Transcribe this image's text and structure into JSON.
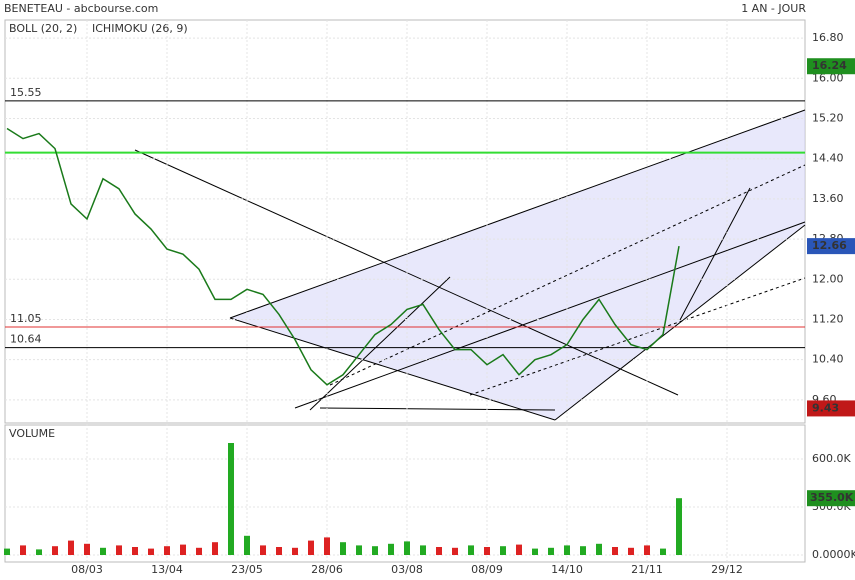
{
  "chart_data": [
    {
      "type": "line",
      "title": "BENETEAU - abcbourse.com",
      "period": "1 AN - JOUR",
      "indicators": [
        {
          "name": "BOLL (20, 2)",
          "color": "#e8a04a"
        },
        {
          "name": "ICHIMOKU (26, 9)",
          "color": "#2a56b8"
        }
      ],
      "categories": [
        null,
        null,
        null,
        null,
        null,
        "08/03",
        null,
        null,
        null,
        null,
        "13/04",
        null,
        null,
        null,
        null,
        "23/05",
        null,
        null,
        null,
        null,
        "28/06",
        null,
        null,
        null,
        null,
        "03/08",
        null,
        null,
        null,
        null,
        "08/09",
        null,
        null,
        null,
        null,
        "14/10",
        null,
        null,
        null,
        null,
        "21/11",
        null,
        null,
        null,
        null,
        "29/12",
        null,
        null,
        null,
        null
      ],
      "series": [
        {
          "name": "BENETEAU",
          "color": "#1a7a1a",
          "values": [
            15.0,
            14.8,
            14.9,
            14.6,
            13.5,
            13.2,
            14.0,
            13.8,
            13.3,
            13.0,
            12.6,
            12.5,
            12.2,
            11.6,
            11.6,
            11.8,
            11.7,
            11.3,
            10.8,
            10.2,
            9.9,
            10.1,
            10.5,
            10.9,
            11.1,
            11.4,
            11.5,
            11.0,
            10.6,
            10.6,
            10.3,
            10.5,
            10.1,
            10.4,
            10.5,
            10.7,
            11.2,
            11.6,
            11.1,
            10.7,
            10.6,
            10.9,
            12.66,
            null,
            null,
            null,
            null,
            null,
            null,
            null
          ]
        }
      ],
      "ylim": [
        9.14,
        17.16
      ],
      "yticks": [
        {
          "value": 9.6,
          "label": "9.60"
        },
        {
          "value": 10.4,
          "label": "10.40"
        },
        {
          "value": 11.2,
          "label": "11.20"
        },
        {
          "value": 12.0,
          "label": "12.00"
        },
        {
          "value": 12.8,
          "label": "12.80"
        },
        {
          "value": 13.6,
          "label": "13.60"
        },
        {
          "value": 14.4,
          "label": "14.40"
        },
        {
          "value": 15.2,
          "label": "15.20"
        },
        {
          "value": 16.0,
          "label": "16.00"
        },
        {
          "value": 16.8,
          "label": "16.80"
        }
      ],
      "levels": [
        {
          "value": 15.55,
          "color": "#000000"
        },
        {
          "value": 11.05,
          "color": "#e03030"
        },
        {
          "value": 10.64,
          "color": "#000000"
        },
        {
          "value": 14.52,
          "color": "#33dd33"
        }
      ],
      "markers": [
        {
          "value": 16.24,
          "color": "#1f8f1f"
        },
        {
          "value": 12.66,
          "color": "#2a56b8"
        },
        {
          "value": 9.43,
          "color": "#c01818"
        }
      ],
      "grid": true
    },
    {
      "type": "bar",
      "title": "VOLUME",
      "values": [
        40000,
        60000,
        35000,
        55000,
        90000,
        70000,
        45000,
        60000,
        50000,
        40000,
        55000,
        65000,
        45000,
        80000,
        700000,
        120000,
        60000,
        50000,
        45000,
        90000,
        110000,
        80000,
        60000,
        55000,
        70000,
        85000,
        60000,
        50000,
        45000,
        60000,
        50000,
        55000,
        65000,
        40000,
        45000,
        60000,
        55000,
        70000,
        50000,
        45000,
        60000,
        40000,
        355000,
        null,
        null,
        null,
        null,
        null,
        null,
        null
      ],
      "colors": {
        "up": "#22aa22",
        "down": "#dd2222"
      },
      "ylim": [
        0,
        812500
      ],
      "yticks": [
        {
          "value": 0,
          "label": "0.0000K"
        },
        {
          "value": 300000,
          "label": "300.0K"
        },
        {
          "value": 600000,
          "label": "600.0K"
        }
      ],
      "markers": [
        {
          "value": 355000,
          "label": "355.0K",
          "color": "#1f8f1f"
        }
      ]
    }
  ]
}
